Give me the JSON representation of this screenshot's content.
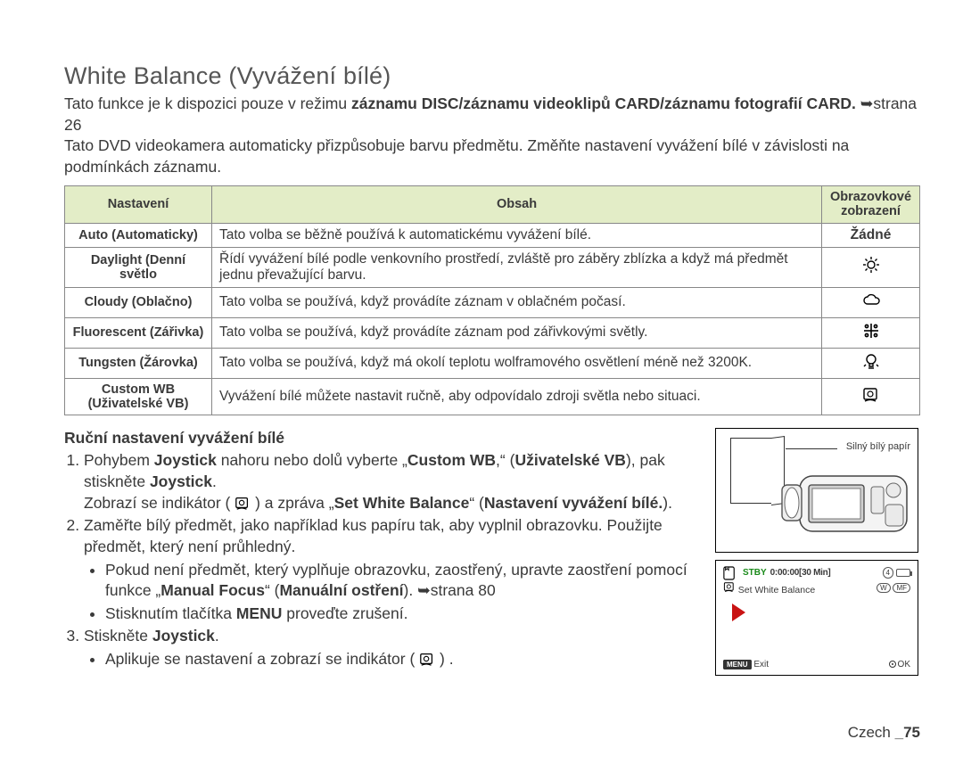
{
  "heading": "White Balance (Vyvážení bílé)",
  "intro": {
    "l1a": "Tato funkce je k dispozici pouze v režimu ",
    "l1b": "záznamu DISC/záznamu videoklipů CARD/záznamu fotografií CARD.",
    "l1c": " ➥strana 26",
    "l2": "Tato DVD videokamera automaticky přizpůsobuje barvu předmětu. Změňte nastavení vyvážení bílé v závislosti na podmínkách záznamu.",
    "colors": {
      "text": "#3a3a3a",
      "arrow": "#3a3a3a"
    }
  },
  "table": {
    "header_bg": "#e3edc7",
    "border": "#888888",
    "cols": [
      "Nastavení",
      "Obsah",
      "Obrazovkové zobrazení"
    ],
    "rows": [
      {
        "name": "Auto (Automaticky)",
        "desc": "Tato volba se běžně používá k automatickému vyvážení bílé.",
        "disp_text": "Žádné",
        "icon": "none"
      },
      {
        "name": "Daylight (Denní světlo",
        "desc": "Řídí vyvážení bílé podle venkovního prostředí, zvláště pro záběry zblízka a když má předmět jednu převažující barvu.",
        "disp_text": "",
        "icon": "sun"
      },
      {
        "name": "Cloudy (Oblačno)",
        "desc": "Tato volba se používá, když provádíte záznam v oblačném počasí.",
        "disp_text": "",
        "icon": "cloud"
      },
      {
        "name": "Fluorescent (Zářivka)",
        "desc": "Tato volba se používá, když provádíte záznam pod zářivkovými světly.",
        "disp_text": "",
        "icon": "fluorescent"
      },
      {
        "name": "Tungsten (Žárovka)",
        "desc": "Tato volba se používá, když má okolí teplotu wolframového osvětlení méně než 3200K.",
        "disp_text": "",
        "icon": "bulb"
      },
      {
        "name": "Custom WB (Uživatelské VB)",
        "desc": "Vyvážení bílé můžete nastavit ručně, aby odpovídalo zdroji světla nebo situaci.",
        "disp_text": "",
        "icon": "custom"
      }
    ]
  },
  "steps": {
    "subhead": "Ruční nastavení vyvážení bílé",
    "s1a": "Pohybem ",
    "s1_joy": "Joystick",
    "s1b": " nahoru nebo dolů vyberte „",
    "s1_cwb": "Custom WB",
    "s1c": ",“ (",
    "s1_uvb": "Uživatelské VB",
    "s1d": "), pak stiskněte ",
    "s1_joy2": "Joystick",
    "s1e": ".",
    "s1_line2a": "Zobrazí se indikátor ( ",
    "s1_line2b": " ) a zpráva „",
    "s1_swb": "Set White Balance",
    "s1_line2c": "“ (",
    "s1_nvb": "Nastavení vyvážení bílé.",
    "s1_line2d": ").",
    "s2": "Zaměřte bílý předmět, jako například kus papíru tak, aby vyplnil obrazovku. Použijte předmět, který není průhledný.",
    "s2b1a": "Pokud není předmět, který vyplňuje obrazovku, zaostřený, upravte zaostření pomocí funkce „",
    "s2b1_mf": "Manual Focus",
    "s2b1b": "“ (",
    "s2b1_mo": "Manuální ostření",
    "s2b1c": "). ➥strana 80",
    "s2b2a": "Stisknutím tlačítka ",
    "s2b2_menu": "MENU",
    "s2b2b": " proveďte zrušení.",
    "s3a": "Stiskněte ",
    "s3_joy": "Joystick",
    "s3b": ".",
    "s3bul_a": "Aplikuje se nastavení a zobrazí se indikátor ( ",
    "s3bul_b": " ) ."
  },
  "illus": {
    "label": "Silný bílý papír"
  },
  "lcd": {
    "stby": "STBY",
    "time": "0:00:00[30 Min]",
    "badge1": "4",
    "swb": "Set White Balance",
    "menu": "MENU",
    "exit": "Exit",
    "ok": "OK",
    "colors": {
      "stby": "#1a8a1a",
      "red": "#c91313",
      "border": "#000000"
    }
  },
  "footer": {
    "lang": "Czech ",
    "sep": "_",
    "page": "75"
  }
}
